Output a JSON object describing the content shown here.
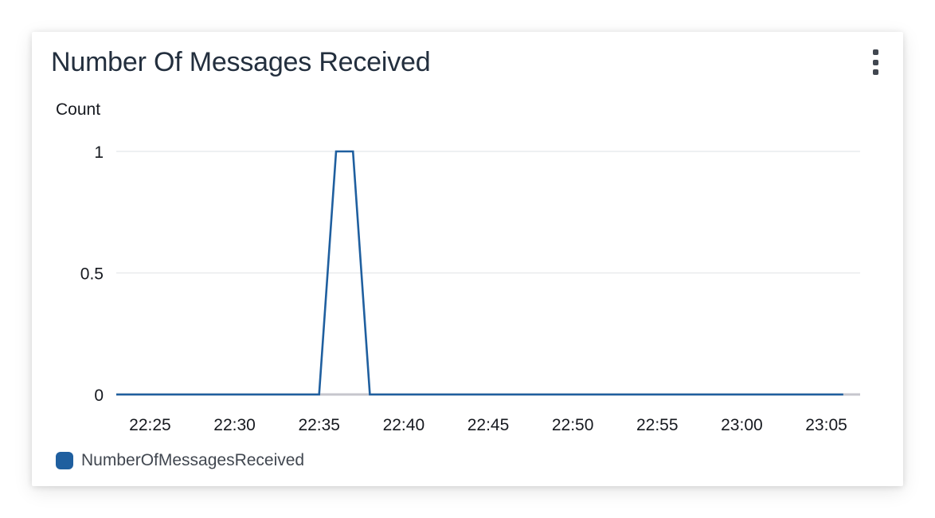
{
  "widget": {
    "title": "Number Of Messages Received",
    "menu_icon": "vertical-ellipsis-icon"
  },
  "chart_data": {
    "type": "line",
    "ylabel": "Count",
    "xlabel": "",
    "ylim": [
      0,
      1
    ],
    "yticks": [
      "0",
      "0.5",
      "1"
    ],
    "ytick_values": [
      0,
      0.5,
      1
    ],
    "xlim": [
      "22:23",
      "23:07"
    ],
    "xtick_labels": [
      "22:25",
      "22:30",
      "22:35",
      "22:40",
      "22:45",
      "22:50",
      "22:55",
      "23:00",
      "23:05"
    ],
    "grid": true,
    "legend_position": "bottom-left",
    "series": [
      {
        "name": "NumberOfMessagesReceived",
        "color": "#1f5f9f",
        "x": [
          "22:23",
          "22:35",
          "22:36",
          "22:37",
          "22:38",
          "23:06"
        ],
        "values": [
          0,
          0,
          1,
          1,
          0,
          0
        ]
      }
    ]
  }
}
